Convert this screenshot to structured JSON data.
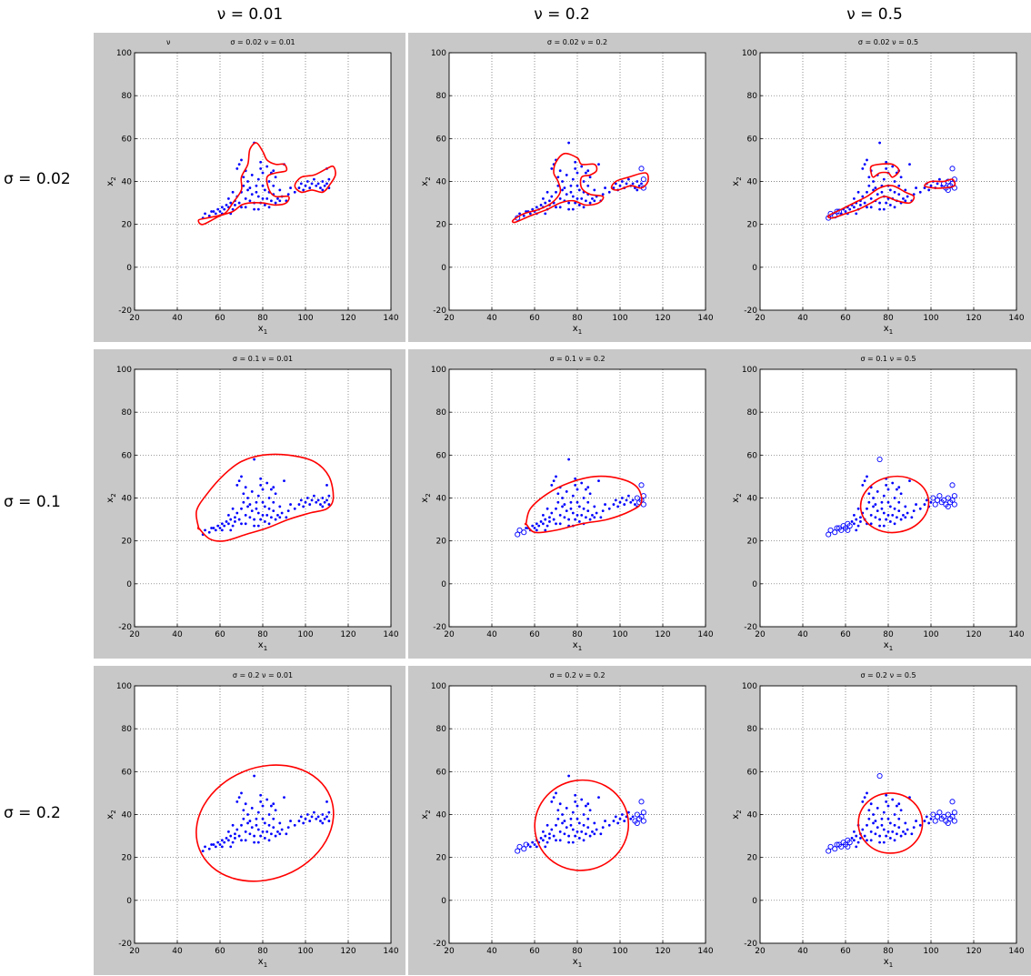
{
  "column_headers": [
    "ν = 0.01",
    "ν = 0.2",
    "ν = 0.5"
  ],
  "row_headers": [
    "σ = 0.02",
    "σ = 0.1",
    "σ = 0.2"
  ],
  "colors": {
    "figure_background": "#c8c8c8",
    "axes_background": "#ffffff",
    "data_points": "#0000ff",
    "boundary": "#ff0000",
    "grid": "#606060"
  },
  "chart_data": [
    {
      "type": "scatter",
      "title": "σ = 0.02  ν = 0.01",
      "stray_label": "ν",
      "xlabel": "x1",
      "ylabel": "x2",
      "xlim": [
        20,
        140
      ],
      "ylim": [
        -20,
        100
      ],
      "grid": true,
      "outlier_count": 0,
      "boundary": {
        "shape": "blobs",
        "blobs": [
          [
            [
              50,
              22
            ],
            [
              54,
              23
            ],
            [
              62,
              25
            ],
            [
              66,
              30
            ],
            [
              70,
              36
            ],
            [
              70,
              42
            ],
            [
              73,
              48
            ],
            [
              74,
              55
            ],
            [
              77,
              58
            ],
            [
              80,
              54
            ],
            [
              82,
              50
            ],
            [
              86,
              48
            ],
            [
              90,
              48
            ],
            [
              91,
              45
            ],
            [
              86,
              44
            ],
            [
              82,
              42
            ],
            [
              83,
              36
            ],
            [
              86,
              33
            ],
            [
              92,
              33
            ],
            [
              91,
              30
            ],
            [
              86,
              29
            ],
            [
              80,
              30
            ],
            [
              74,
              30
            ],
            [
              70,
              29
            ],
            [
              66,
              26
            ],
            [
              60,
              24
            ],
            [
              52,
              20
            ]
          ],
          [
            [
              95,
              38
            ],
            [
              98,
              42
            ],
            [
              104,
              43
            ],
            [
              110,
              46
            ],
            [
              113,
              47
            ],
            [
              114,
              43
            ],
            [
              111,
              38
            ],
            [
              108,
              35
            ],
            [
              103,
              36
            ],
            [
              98,
              35
            ]
          ]
        ]
      }
    },
    {
      "type": "scatter",
      "title": "σ = 0.02  ν = 0.2",
      "xlabel": "x1",
      "ylabel": "x2",
      "xlim": [
        20,
        140
      ],
      "ylim": [
        -20,
        100
      ],
      "grid": true,
      "outlier_count": 4,
      "boundary": {
        "shape": "blobs",
        "blobs": [
          [
            [
              50,
              22
            ],
            [
              55,
              25
            ],
            [
              62,
              27
            ],
            [
              68,
              30
            ],
            [
              72,
              35
            ],
            [
              71,
              40
            ],
            [
              69,
              44
            ],
            [
              70,
              49
            ],
            [
              74,
              53
            ],
            [
              80,
              51
            ],
            [
              82,
              48
            ],
            [
              88,
              48
            ],
            [
              89,
              45
            ],
            [
              86,
              43
            ],
            [
              82,
              42
            ],
            [
              82,
              37
            ],
            [
              86,
              34
            ],
            [
              92,
              33
            ],
            [
              90,
              30
            ],
            [
              84,
              29
            ],
            [
              78,
              31
            ],
            [
              72,
              30
            ],
            [
              66,
              27
            ],
            [
              58,
              24
            ],
            [
              51,
              21
            ]
          ],
          [
            [
              96,
              37
            ],
            [
              98,
              40
            ],
            [
              104,
              42
            ],
            [
              112,
              44
            ],
            [
              113,
              40
            ],
            [
              110,
              37
            ],
            [
              105,
              38
            ],
            [
              99,
              36
            ]
          ]
        ]
      }
    },
    {
      "type": "scatter",
      "title": "σ = 0.02  ν = 0.5",
      "xlabel": "x1",
      "ylabel": "x2",
      "xlim": [
        20,
        140
      ],
      "ylim": [
        -20,
        100
      ],
      "grid": true,
      "outlier_count": 14,
      "boundary": {
        "shape": "blobs",
        "blobs": [
          [
            [
              52,
              24
            ],
            [
              58,
              27
            ],
            [
              64,
              30
            ],
            [
              70,
              33
            ],
            [
              76,
              37
            ],
            [
              82,
              38
            ],
            [
              88,
              35
            ],
            [
              92,
              33
            ],
            [
              90,
              30
            ],
            [
              84,
              31
            ],
            [
              78,
              33
            ],
            [
              72,
              30
            ],
            [
              66,
              27
            ],
            [
              60,
              25
            ],
            [
              54,
              23
            ]
          ],
          [
            [
              72,
              47
            ],
            [
              76,
              48
            ],
            [
              82,
              48
            ],
            [
              85,
              45
            ],
            [
              82,
              42
            ],
            [
              80,
              44
            ],
            [
              76,
              44
            ],
            [
              73,
              42
            ],
            [
              72,
              44
            ]
          ],
          [
            [
              97,
              38
            ],
            [
              100,
              40
            ],
            [
              106,
              40
            ],
            [
              110,
              41
            ],
            [
              111,
              38
            ],
            [
              106,
              37
            ],
            [
              101,
              37
            ]
          ]
        ]
      }
    },
    {
      "type": "scatter",
      "title": "σ = 0.1  ν = 0.01",
      "xlabel": "x1",
      "ylabel": "x2",
      "xlim": [
        20,
        140
      ],
      "ylim": [
        -20,
        100
      ],
      "grid": true,
      "outlier_count": 0,
      "boundary": {
        "shape": "blobs",
        "blobs": [
          [
            [
              50,
              26
            ],
            [
              49,
              34
            ],
            [
              54,
              42
            ],
            [
              62,
              51
            ],
            [
              70,
              57
            ],
            [
              80,
              60
            ],
            [
              92,
              60
            ],
            [
              104,
              57
            ],
            [
              111,
              50
            ],
            [
              113,
              40
            ],
            [
              110,
              35
            ],
            [
              102,
              33
            ],
            [
              92,
              30
            ],
            [
              82,
              26
            ],
            [
              72,
              23
            ],
            [
              62,
              20
            ],
            [
              55,
              21
            ],
            [
              50,
              26
            ]
          ]
        ]
      }
    },
    {
      "type": "scatter",
      "title": "σ = 0.1  ν = 0.2",
      "xlabel": "x1",
      "ylabel": "x2",
      "xlim": [
        20,
        140
      ],
      "ylim": [
        -20,
        100
      ],
      "grid": true,
      "outlier_count": 9,
      "boundary": {
        "shape": "blobs",
        "blobs": [
          [
            [
              56,
              28
            ],
            [
              58,
              35
            ],
            [
              66,
              42
            ],
            [
              76,
              47
            ],
            [
              88,
              50
            ],
            [
              100,
              49
            ],
            [
              108,
              45
            ],
            [
              110,
              38
            ],
            [
              105,
              34
            ],
            [
              94,
              30
            ],
            [
              82,
              28
            ],
            [
              70,
              25
            ],
            [
              60,
              24
            ],
            [
              56,
              28
            ]
          ]
        ]
      }
    },
    {
      "type": "scatter",
      "title": "σ = 0.1  ν = 0.5",
      "xlabel": "x1",
      "ylabel": "x2",
      "xlim": [
        20,
        140
      ],
      "ylim": [
        -20,
        100
      ],
      "grid": true,
      "outlier_count": 26,
      "boundary": {
        "shape": "ellipse",
        "cx": 83,
        "cy": 37,
        "rx": 16,
        "ry": 13,
        "rotation": -10
      }
    },
    {
      "type": "scatter",
      "title": "σ = 0.2  ν = 0.01",
      "xlabel": "x1",
      "ylabel": "x2",
      "xlim": [
        20,
        140
      ],
      "ylim": [
        -20,
        100
      ],
      "grid": true,
      "outlier_count": 0,
      "boundary": {
        "shape": "ellipse",
        "cx": 81,
        "cy": 36,
        "rx": 33,
        "ry": 26,
        "rotation": -22
      }
    },
    {
      "type": "scatter",
      "title": "σ = 0.2  ν = 0.2",
      "xlabel": "x1",
      "ylabel": "x2",
      "xlim": [
        20,
        140
      ],
      "ylim": [
        -20,
        100
      ],
      "grid": true,
      "outlier_count": 12,
      "boundary": {
        "shape": "ellipse",
        "cx": 82,
        "cy": 35,
        "rx": 22,
        "ry": 21,
        "rotation": -15
      }
    },
    {
      "type": "scatter",
      "title": "σ = 0.2  ν = 0.5",
      "xlabel": "x1",
      "ylabel": "x2",
      "xlim": [
        20,
        140
      ],
      "ylim": [
        -20,
        100
      ],
      "grid": true,
      "outlier_count": 26,
      "boundary": {
        "shape": "ellipse",
        "cx": 81,
        "cy": 36,
        "rx": 15,
        "ry": 14,
        "rotation": 0
      }
    }
  ],
  "shared_points": [
    [
      52,
      23
    ],
    [
      53,
      25
    ],
    [
      55,
      24
    ],
    [
      56,
      26
    ],
    [
      58,
      25
    ],
    [
      59,
      27
    ],
    [
      60,
      26
    ],
    [
      61,
      28
    ],
    [
      62,
      27
    ],
    [
      63,
      29
    ],
    [
      64,
      28
    ],
    [
      65,
      30
    ],
    [
      66,
      27
    ],
    [
      67,
      31
    ],
    [
      68,
      33
    ],
    [
      68,
      46
    ],
    [
      69,
      48
    ],
    [
      70,
      50
    ],
    [
      70,
      35
    ],
    [
      71,
      38
    ],
    [
      71,
      42
    ],
    [
      72,
      45
    ],
    [
      72,
      32
    ],
    [
      73,
      36
    ],
    [
      73,
      40
    ],
    [
      74,
      31
    ],
    [
      75,
      34
    ],
    [
      75,
      43
    ],
    [
      76,
      58
    ],
    [
      76,
      30
    ],
    [
      77,
      38
    ],
    [
      77,
      35
    ],
    [
      78,
      41
    ],
    [
      78,
      33
    ],
    [
      79,
      46
    ],
    [
      79,
      30
    ],
    [
      80,
      44
    ],
    [
      80,
      38
    ],
    [
      81,
      36
    ],
    [
      81,
      29
    ],
    [
      82,
      47
    ],
    [
      82,
      32
    ],
    [
      83,
      40
    ],
    [
      83,
      35
    ],
    [
      84,
      31
    ],
    [
      85,
      34
    ],
    [
      85,
      38
    ],
    [
      86,
      30
    ],
    [
      87,
      32
    ],
    [
      88,
      31
    ],
    [
      89,
      33
    ],
    [
      90,
      48
    ],
    [
      91,
      31
    ],
    [
      97,
      37
    ],
    [
      98,
      39
    ],
    [
      99,
      36
    ],
    [
      100,
      38
    ],
    [
      101,
      40
    ],
    [
      102,
      37
    ],
    [
      103,
      39
    ],
    [
      104,
      41
    ],
    [
      106,
      39
    ],
    [
      107,
      37
    ],
    [
      108,
      36
    ],
    [
      108,
      40
    ],
    [
      109,
      38
    ],
    [
      110,
      39
    ],
    [
      111,
      41
    ],
    [
      111,
      37
    ],
    [
      110,
      46
    ],
    [
      57,
      26
    ],
    [
      64,
      32
    ],
    [
      66,
      35
    ],
    [
      69,
      30
    ],
    [
      74,
      37
    ],
    [
      84,
      44
    ],
    [
      86,
      42
    ],
    [
      88,
      36
    ],
    [
      92,
      34
    ],
    [
      95,
      35
    ],
    [
      76,
      27
    ],
    [
      70,
      28
    ],
    [
      80,
      32
    ],
    [
      83,
      28
    ],
    [
      65,
      25
    ],
    [
      93,
      37
    ],
    [
      72,
      28
    ],
    [
      78,
      27
    ],
    [
      79,
      49
    ],
    [
      85,
      45
    ],
    [
      105,
      38
    ],
    [
      61,
      25
    ],
    [
      67,
      29
    ]
  ]
}
